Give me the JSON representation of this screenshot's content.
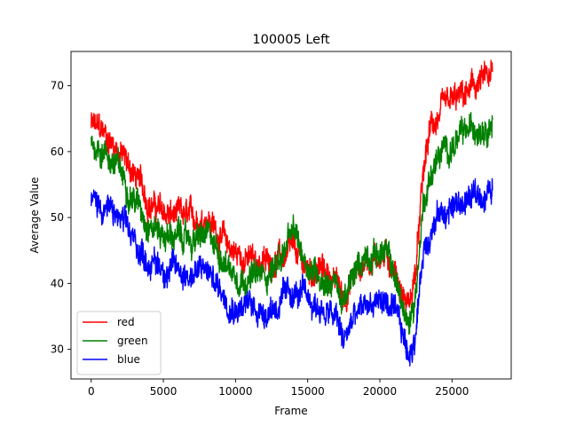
{
  "chart_data": {
    "type": "line",
    "title": "100005 Left",
    "xlabel": "Frame",
    "ylabel": "Average Value",
    "xlim": [
      -1400,
      29100
    ],
    "ylim": [
      25.5,
      75.2
    ],
    "xticks": [
      0,
      5000,
      10000,
      15000,
      20000,
      25000
    ],
    "yticks": [
      30,
      40,
      50,
      60,
      70
    ],
    "grid": false,
    "legend_position": "lower-left",
    "series": [
      {
        "name": "red",
        "color": "#ff0000",
        "x": [
          0,
          1000,
          2000,
          3000,
          4000,
          5000,
          6000,
          7000,
          8000,
          9000,
          10000,
          11000,
          12000,
          13000,
          14000,
          15000,
          16000,
          17000,
          17500,
          18000,
          19000,
          20000,
          20500,
          21000,
          21500,
          22000,
          22500,
          23000,
          23500,
          24000,
          25000,
          26000,
          27000,
          27800
        ],
        "y": [
          64,
          62.5,
          60,
          56.5,
          52.5,
          50.5,
          50,
          49.5,
          50.5,
          47,
          44.5,
          43.5,
          43,
          44,
          44.5,
          42,
          42,
          40,
          37.5,
          40.5,
          43.5,
          44.5,
          44,
          42.5,
          38.5,
          36.5,
          42,
          56,
          63.5,
          65,
          67,
          68.5,
          70.5,
          71
        ]
      },
      {
        "name": "green",
        "color": "#008000",
        "x": [
          0,
          1000,
          2000,
          3000,
          4000,
          5000,
          6000,
          7000,
          8000,
          9000,
          10000,
          11000,
          12000,
          13000,
          14000,
          15000,
          16000,
          17000,
          17500,
          18000,
          19000,
          20000,
          20500,
          21000,
          21500,
          22000,
          22500,
          23000,
          23500,
          24000,
          25000,
          26000,
          27000,
          27800
        ],
        "y": [
          61.5,
          60,
          57,
          53,
          49.5,
          47.5,
          47,
          46.5,
          47,
          44.5,
          41.5,
          41,
          41,
          43.5,
          47.5,
          43,
          41,
          40,
          36.5,
          40,
          44.5,
          45,
          44,
          41.5,
          37,
          33,
          39,
          52,
          56.5,
          59,
          61,
          62.5,
          64.5,
          65
        ]
      },
      {
        "name": "blue",
        "color": "#0000ff",
        "x": [
          0,
          1000,
          2000,
          3000,
          4000,
          5000,
          6000,
          7000,
          8000,
          9000,
          10000,
          11000,
          12000,
          13000,
          14000,
          15000,
          16000,
          17000,
          17500,
          18000,
          19000,
          20000,
          20500,
          21000,
          21500,
          22000,
          22500,
          23000,
          23500,
          24000,
          25000,
          26000,
          27000,
          27800
        ],
        "y": [
          52.5,
          51.5,
          49.5,
          46,
          43.5,
          42.5,
          42,
          41.5,
          42,
          39,
          37,
          36.5,
          36,
          37,
          38.5,
          37.5,
          36,
          34.5,
          31,
          34,
          36.5,
          37.5,
          37,
          35,
          32.5,
          29,
          33,
          45,
          48.5,
          50,
          51.5,
          52.5,
          53.5,
          54
        ]
      }
    ]
  }
}
